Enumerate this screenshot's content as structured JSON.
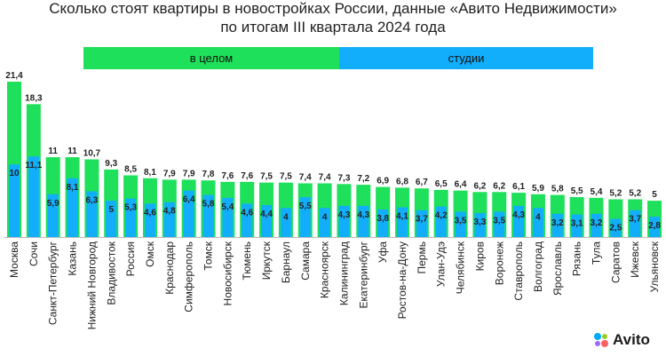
{
  "chart_data": {
    "type": "bar",
    "title": "Сколько стоят квартиры в новостройках России, данные «Авито Недвижимости»",
    "subtitle": "по итогам III квартала 2024 года",
    "categories": [
      "Москва",
      "Сочи",
      "Санкт-Петербург",
      "Казань",
      "Нижний Новгород",
      "Владивосток",
      "Россия",
      "Омск",
      "Краснодар",
      "Симферополь",
      "Томск",
      "Новосибирск",
      "Тюмень",
      "Иркутск",
      "Барнаул",
      "Самара",
      "Красноярск",
      "Калининград",
      "Екатеринбург",
      "Уфа",
      "Ростов-на-Дону",
      "Пермь",
      "Улан-Удэ",
      "Челябинск",
      "Киров",
      "Воронеж",
      "Ставрополь",
      "Волгоград",
      "Ярославль",
      "Рязань",
      "Тула",
      "Саратов",
      "Ижевск",
      "Ульяновск"
    ],
    "series": [
      {
        "name": "в целом",
        "color": "#1ee05a",
        "values": [
          21.4,
          18.3,
          11,
          11,
          10.7,
          9.3,
          8.5,
          8.1,
          7.9,
          7.9,
          7.8,
          7.6,
          7.6,
          7.5,
          7.5,
          7.4,
          7.4,
          7.3,
          7.2,
          6.9,
          6.8,
          6.7,
          6.5,
          6.4,
          6.2,
          6.2,
          6.1,
          5.9,
          5.8,
          5.5,
          5.4,
          5.2,
          5.2,
          5
        ],
        "labels": [
          "21,4",
          "18,3",
          "11",
          "11",
          "10,7",
          "9,3",
          "8,5",
          "8,1",
          "7,9",
          "7,9",
          "7,8",
          "7,6",
          "7,6",
          "7,5",
          "7,5",
          "7,4",
          "7,4",
          "7,3",
          "7,2",
          "6,9",
          "6,8",
          "6,7",
          "6,5",
          "6,4",
          "6,2",
          "6,2",
          "6,1",
          "5,9",
          "5,8",
          "5,5",
          "5,4",
          "5,2",
          "5,2",
          "5"
        ]
      },
      {
        "name": "студии",
        "color": "#12aefc",
        "values": [
          10,
          11.1,
          5.9,
          8.1,
          6.3,
          5,
          5.3,
          4.6,
          4.8,
          6.4,
          5.8,
          5.4,
          4.6,
          4.4,
          4,
          5.5,
          4,
          4.3,
          4.3,
          3.8,
          4.1,
          3.7,
          4.2,
          3.5,
          3.3,
          3.5,
          4.3,
          4,
          3.2,
          3.1,
          3.2,
          2.5,
          3.7,
          2.8
        ],
        "labels": [
          "10",
          "11,1",
          "5,9",
          "8,1",
          "6,3",
          "5",
          "5,3",
          "4,6",
          "4,8",
          "6,4",
          "5,8",
          "5,4",
          "4,6",
          "4,4",
          "4",
          "5,5",
          "4",
          "4,3",
          "4,3",
          "3,8",
          "4,1",
          "3,7",
          "4,2",
          "3,5",
          "3,3",
          "3,5",
          "4,3",
          "4",
          "3,2",
          "3,1",
          "3,2",
          "2,5",
          "3,7",
          "2,8"
        ]
      }
    ],
    "legend": [
      "в целом",
      "студии"
    ],
    "legend_position": "top",
    "grid": false
  },
  "logo": {
    "text": "Avito",
    "icon": "avito-dots-icon",
    "colors": [
      "#00aaff",
      "#97cf26",
      "#a169f7",
      "#ff6163"
    ]
  }
}
